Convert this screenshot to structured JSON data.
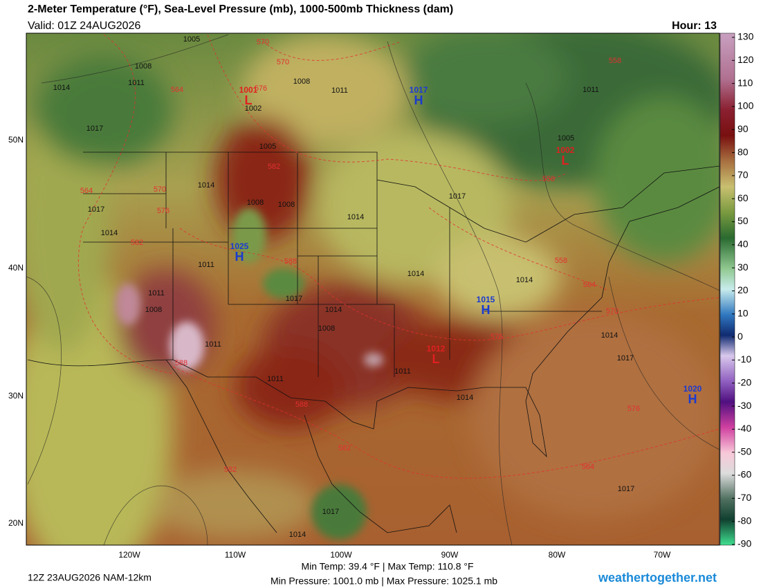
{
  "header": {
    "title": "2-Meter Temperature (°F), Sea-Level Pressure (mb), 1000-500mb Thickness (dam)",
    "valid": "Valid: 01Z 24AUG2026",
    "hour": "Hour: 13"
  },
  "map": {
    "latitude_labels": [
      "50N",
      "40N",
      "30N",
      "20N"
    ],
    "longitude_labels": [
      "120W",
      "110W",
      "100W",
      "90W",
      "80W",
      "70W"
    ],
    "pressure_centers": [
      {
        "letter": "H",
        "value": 1017
      },
      {
        "letter": "H",
        "value": 1025
      },
      {
        "letter": "H",
        "value": 1015
      },
      {
        "letter": "H",
        "value": 1020
      },
      {
        "letter": "L",
        "value": 1002
      },
      {
        "letter": "L",
        "value": 1001
      },
      {
        "letter": "L",
        "value": 1012
      }
    ],
    "isobar_labels": [
      1005,
      1008,
      1011,
      1014,
      1017,
      1002,
      1008,
      1011,
      1005,
      1014,
      1008,
      1017,
      1014,
      1008,
      1011,
      1014,
      1017,
      1011,
      1008,
      1011,
      1011,
      1014,
      1017,
      1014,
      1014,
      1011,
      1017,
      1014,
      1008,
      1005,
      1011,
      1017,
      1014,
      1017,
      1014
    ],
    "thickness_labels": [
      570,
      570,
      564,
      576,
      582,
      570,
      576,
      564,
      582,
      558,
      558,
      564,
      570,
      576,
      588,
      588,
      582,
      582,
      576,
      588,
      558,
      564
    ]
  },
  "colorbar": {
    "ticks": [
      130,
      120,
      110,
      100,
      90,
      80,
      70,
      60,
      50,
      40,
      30,
      20,
      10,
      0,
      -10,
      -20,
      -30,
      -40,
      -50,
      -60,
      -70,
      -80,
      -90
    ]
  },
  "footer": {
    "run": "12Z 23AUG2026 NAM-12km",
    "temp_range": "Min Temp:  39.4 °F | Max Temp: 110.8 °F",
    "pressure_range": "Min Pressure: 1001.0 mb | Max Pressure: 1025.1 mb",
    "site": "weathertogether.net"
  }
}
